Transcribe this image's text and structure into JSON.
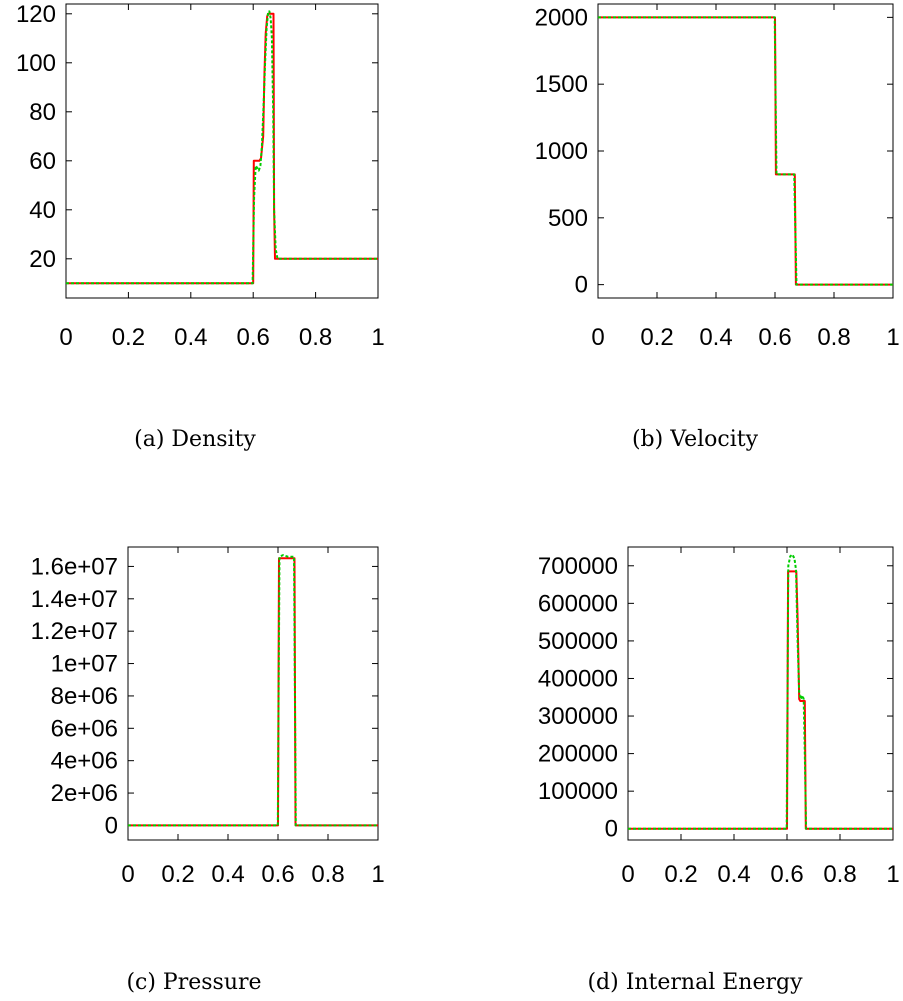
{
  "chart_data": [
    {
      "type": "line",
      "caption": "(a) Density",
      "xlim": [
        0,
        1
      ],
      "ylim": [
        4,
        124
      ],
      "xticks": [
        "0",
        "0.2",
        "0.4",
        "0.6",
        "0.8",
        "1"
      ],
      "yticks": [
        "20",
        "40",
        "60",
        "80",
        "100",
        "120"
      ],
      "series": [
        {
          "color": "#ff0000",
          "style": "solid",
          "x": [
            0,
            0.6,
            0.602,
            0.62,
            0.625,
            0.632,
            0.636,
            0.64,
            0.645,
            0.648,
            0.665,
            0.667,
            0.67,
            1
          ],
          "y": [
            10,
            10,
            60,
            60,
            61,
            70,
            95,
            112,
            119,
            120,
            120,
            40,
            20,
            20
          ]
        },
        {
          "color": "#00cc00",
          "style": "dashed",
          "x": [
            0,
            0.598,
            0.603,
            0.608,
            0.613,
            0.618,
            0.623,
            0.628,
            0.633,
            0.638,
            0.643,
            0.648,
            0.652,
            0.656,
            0.66,
            0.664,
            0.667,
            0.672,
            0.678,
            1
          ],
          "y": [
            10,
            10,
            45,
            58,
            57,
            56,
            58,
            66,
            82,
            100,
            114,
            121,
            121,
            118,
            110,
            80,
            40,
            24,
            20,
            20
          ]
        }
      ]
    },
    {
      "type": "line",
      "caption": "(b) Velocity",
      "xlim": [
        0,
        1
      ],
      "ylim": [
        -100,
        2100
      ],
      "xticks": [
        "0",
        "0.2",
        "0.4",
        "0.6",
        "0.8",
        "1"
      ],
      "yticks": [
        "0",
        "500",
        "1000",
        "1500",
        "2000"
      ],
      "series": [
        {
          "color": "#ff0000",
          "style": "solid",
          "x": [
            0,
            0.6,
            0.603,
            0.667,
            0.671,
            1
          ],
          "y": [
            2000,
            2000,
            825,
            825,
            0,
            0
          ]
        },
        {
          "color": "#00cc00",
          "style": "dashed",
          "x": [
            0,
            0.599,
            0.605,
            0.665,
            0.673,
            1
          ],
          "y": [
            2000,
            2000,
            825,
            825,
            0,
            0
          ]
        }
      ]
    },
    {
      "type": "line",
      "caption": "(c) Pressure",
      "xlim": [
        0,
        1
      ],
      "ylim": [
        -900000,
        17200000
      ],
      "xticks": [
        "0",
        "0.2",
        "0.4",
        "0.6",
        "0.8",
        "1"
      ],
      "yticks": [
        "0",
        "2e+06",
        "4e+06",
        "6e+06",
        "8e+06",
        "1e+07",
        "1.2e+07",
        "1.4e+07",
        "1.6e+07"
      ],
      "series": [
        {
          "color": "#ff0000",
          "style": "solid",
          "x": [
            0,
            0.6,
            0.604,
            0.666,
            0.67,
            1
          ],
          "y": [
            0,
            0,
            16500000,
            16500000,
            0,
            0
          ]
        },
        {
          "color": "#00cc00",
          "style": "dashed",
          "x": [
            0,
            0.599,
            0.606,
            0.62,
            0.64,
            0.664,
            0.671,
            1
          ],
          "y": [
            0,
            0,
            16600000,
            16700000,
            16600000,
            16600000,
            0,
            0
          ]
        }
      ]
    },
    {
      "type": "line",
      "caption": "(d) Internal Energy",
      "xlim": [
        0,
        1
      ],
      "ylim": [
        -30000,
        750000
      ],
      "xticks": [
        "0",
        "0.2",
        "0.4",
        "0.6",
        "0.8",
        "1"
      ],
      "yticks": [
        "0",
        "100000",
        "200000",
        "300000",
        "400000",
        "500000",
        "600000",
        "700000"
      ],
      "series": [
        {
          "color": "#ff0000",
          "style": "solid",
          "x": [
            0,
            0.6,
            0.604,
            0.635,
            0.64,
            0.646,
            0.65,
            0.66,
            0.667,
            0.671,
            1
          ],
          "y": [
            0,
            0,
            685000,
            685000,
            560000,
            345000,
            340000,
            340000,
            340000,
            0,
            0
          ]
        },
        {
          "color": "#00cc00",
          "style": "dashed",
          "x": [
            0,
            0.599,
            0.605,
            0.612,
            0.62,
            0.628,
            0.634,
            0.64,
            0.646,
            0.652,
            0.658,
            0.663,
            0.667,
            0.672,
            1
          ],
          "y": [
            0,
            0,
            700000,
            725000,
            730000,
            720000,
            690000,
            500000,
            360000,
            345000,
            355000,
            345000,
            200000,
            0,
            0
          ]
        }
      ]
    }
  ]
}
